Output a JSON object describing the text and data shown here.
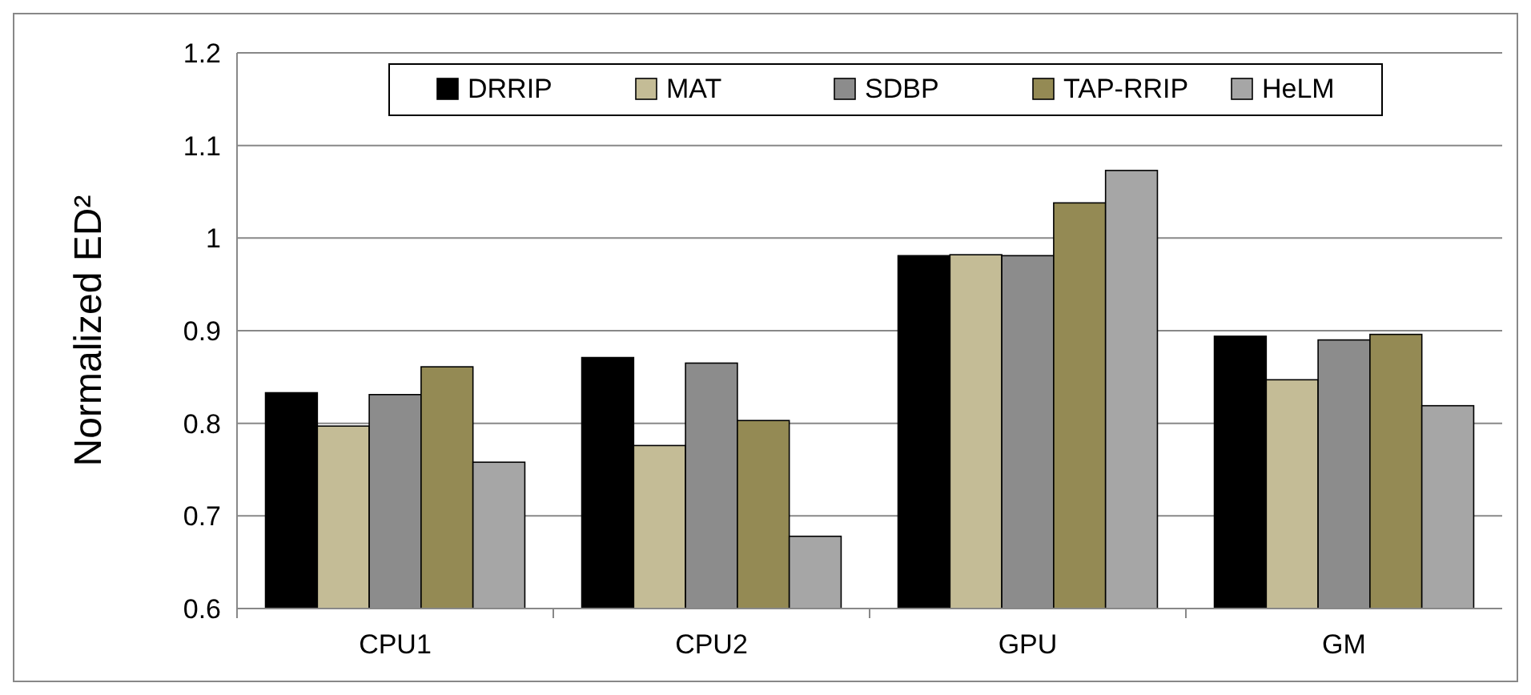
{
  "chart_data": {
    "type": "bar",
    "ylabel": "Normalized ED²",
    "categories": [
      "CPU1",
      "CPU2",
      "GPU",
      "GM"
    ],
    "series": [
      {
        "name": "DRRIP",
        "color": "#000000",
        "values": [
          0.833,
          0.871,
          0.981,
          0.894
        ]
      },
      {
        "name": "MAT",
        "color": "#c4bc96",
        "values": [
          0.797,
          0.776,
          0.982,
          0.847
        ]
      },
      {
        "name": "SDBP",
        "color": "#8c8c8c",
        "values": [
          0.831,
          0.865,
          0.981,
          0.89
        ]
      },
      {
        "name": "TAP-RRIP",
        "color": "#948a54",
        "values": [
          0.861,
          0.803,
          1.038,
          0.896
        ]
      },
      {
        "name": "HeLM",
        "color": "#a6a6a6",
        "values": [
          0.758,
          0.678,
          1.073,
          0.819
        ]
      }
    ],
    "ylim": [
      0.6,
      1.2
    ],
    "yticks": [
      0.6,
      0.7,
      0.8,
      0.9,
      1,
      1.1,
      1.2
    ],
    "grid": "y",
    "legend": "top"
  }
}
